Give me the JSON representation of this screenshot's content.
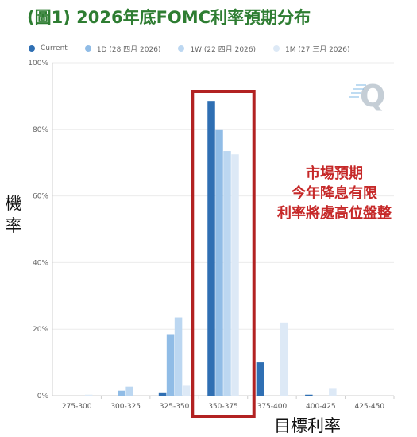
{
  "title": "(圖1) 2026年底FOMC利率預期分布",
  "ylabel_chars": [
    "機",
    "率"
  ],
  "xlabel": "目標利率",
  "annotation": [
    "市場預期",
    "今年降息有限",
    "利率將處高位盤整"
  ],
  "colors": {
    "current": "#2f6fb3",
    "d1": "#90bce6",
    "w1": "#bcd7f1",
    "m1": "#dde9f6",
    "highlight": "#b22222",
    "watermark": "#c5ced6",
    "watermark_accent": "#7fb8e6"
  },
  "watermark_icon": "q-logo-icon",
  "chart_data": {
    "type": "bar",
    "categories": [
      "275-300",
      "300-325",
      "325-350",
      "350-375",
      "375-400",
      "400-425",
      "425-450"
    ],
    "series": [
      {
        "name": "Current",
        "color": "#2f6fb3",
        "values": [
          0,
          0,
          1,
          88.5,
          10,
          0.3,
          0
        ]
      },
      {
        "name": "1D (28 四月 2026)",
        "color": "#90bce6",
        "values": [
          0,
          1.5,
          18.5,
          80,
          0,
          0,
          0
        ]
      },
      {
        "name": "1W (22 四月 2026)",
        "color": "#bcd7f1",
        "values": [
          0,
          2.7,
          23.5,
          73.5,
          0,
          0,
          0
        ]
      },
      {
        "name": "1M (27 三月 2026)",
        "color": "#dde9f6",
        "values": [
          0.3,
          0,
          3,
          72.5,
          22,
          2.3,
          0
        ]
      }
    ],
    "yticks": [
      "0%",
      "20%",
      "40%",
      "60%",
      "80%",
      "100%"
    ],
    "ylim": [
      0,
      100
    ],
    "highlight_category": "350-375",
    "grid": true,
    "legend_position": "top"
  }
}
